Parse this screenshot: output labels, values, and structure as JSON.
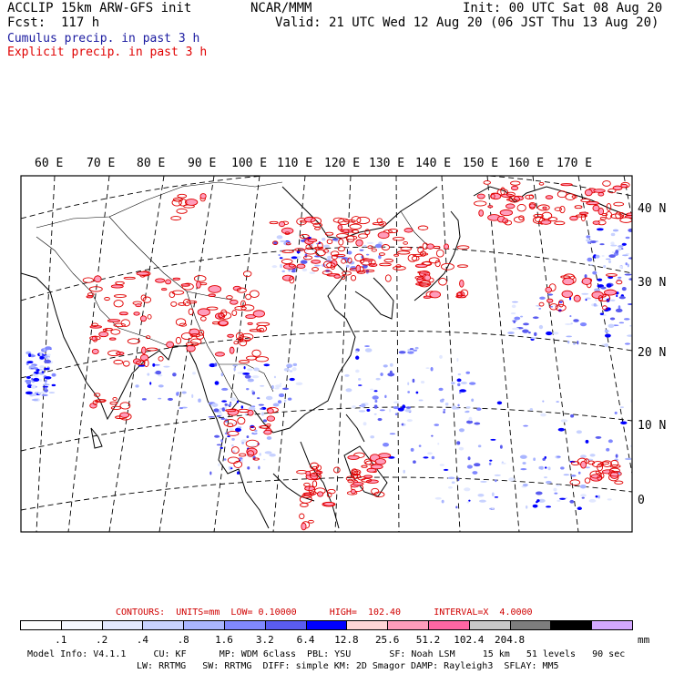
{
  "header": {
    "title": "ACCLIP 15km ARW-GFS init",
    "forecast": "Fcst:  117 h",
    "center": "NCAR/MMM",
    "init": "Init: 00 UTC Sat 08 Aug 20",
    "valid": "Valid: 21 UTC Wed 12 Aug 20 (06 JST Thu 13 Aug 20)",
    "cumulus_label": "Cumulus precip. in past 3 h",
    "explicit_label": "Explicit precip. in past 3 h",
    "cumulus_color": "#1a1aa0",
    "explicit_color": "#e00000"
  },
  "map": {
    "lon_labels": [
      "60 E",
      "70 E",
      "80 E",
      "90 E",
      "100 E",
      "110 E",
      "120 E",
      "130 E",
      "140 E",
      "150 E",
      "160 E",
      "170 E"
    ],
    "lat_labels": [
      "40 N",
      "30 N",
      "20 N",
      "10 N",
      "0"
    ]
  },
  "contours": {
    "title": "CONTOURS:  UNITS=mm  LOW= 0.10000      HIGH=  102.40      INTERVAL=X  4.0000",
    "color": "#d00000"
  },
  "colorbar": {
    "colors": [
      "#ffffff",
      "#f4f7ff",
      "#e2e8ff",
      "#c8d2ff",
      "#a9b5ff",
      "#8088ff",
      "#5a5cf0",
      "#0000ff",
      "#ffd6d6",
      "#ff9dbb",
      "#ff66a3",
      "#c8c8c8",
      "#7d7d7d",
      "#000000",
      "#d4a8ff"
    ],
    "labels": [
      ".1",
      ".2",
      ".4",
      ".8",
      "1.6",
      "3.2",
      "6.4",
      "12.8",
      "25.6",
      "51.2",
      "102.4",
      "204.8"
    ],
    "unit": "mm"
  },
  "footer": {
    "line1": "Model Info: V4.1.1     CU: KF      MP: WDM 6class  PBL: YSU       SF: Noah LSM     15 km   51 levels   90 sec",
    "line2": "LW: RRTMG   SW: RRTMG  DIFF: simple KM: 2D Smagor DAMP: Rayleigh3  SFLAY: MM5"
  }
}
